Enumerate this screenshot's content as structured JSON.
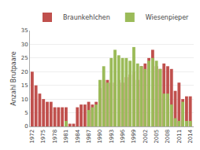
{
  "chart_data": {
    "type": "bar",
    "ylabel": "Anzahl Brutpaare",
    "x": [
      1972,
      1973,
      1974,
      1975,
      1976,
      1977,
      1978,
      1979,
      1980,
      1981,
      1982,
      1983,
      1984,
      1985,
      1986,
      1987,
      1988,
      1989,
      1990,
      1991,
      1992,
      1993,
      1994,
      1995,
      1996,
      1997,
      1998,
      1999,
      2000,
      2001,
      2002,
      2003,
      2004,
      2005,
      2006,
      2007,
      2008,
      2009,
      2010,
      2011,
      2012,
      2013,
      2014
    ],
    "series": [
      {
        "name": "Braunkeh­lchen",
        "color": "#c0504d",
        "values": [
          20,
          15,
          12,
          10,
          9,
          9,
          7,
          7,
          7,
          7,
          1,
          1,
          7,
          8,
          8,
          9,
          8,
          9,
          14,
          17,
          17,
          16,
          16,
          17,
          16,
          18,
          19,
          20,
          17,
          22,
          23,
          25,
          28,
          22,
          21,
          23,
          22,
          21,
          13,
          16,
          10,
          11,
          11
        ]
      },
      {
        "name": "Wiesenpieper",
        "color": "#9bbb59",
        "values": [
          0,
          0,
          0,
          0,
          0,
          0,
          0,
          0,
          0,
          2,
          0,
          0,
          0,
          0,
          0,
          6,
          7,
          8,
          17,
          22,
          16,
          25,
          28,
          26,
          25,
          25,
          24,
          29,
          23,
          22,
          21,
          24,
          25,
          24,
          21,
          12,
          12,
          8,
          3,
          2,
          9,
          2,
          2
        ]
      }
    ],
    "xlim": [
      1971.4,
      2014.9
    ],
    "xticks": [
      1972,
      1975,
      1978,
      1981,
      1984,
      1987,
      1990,
      1993,
      1996,
      1999,
      2002,
      2005,
      2008,
      2011,
      2014
    ],
    "ylim": [
      0,
      35
    ],
    "yticks": [
      0,
      5,
      10,
      15,
      20,
      25,
      30,
      35
    ],
    "grid": true,
    "legend": "upper right",
    "stacked": false
  }
}
